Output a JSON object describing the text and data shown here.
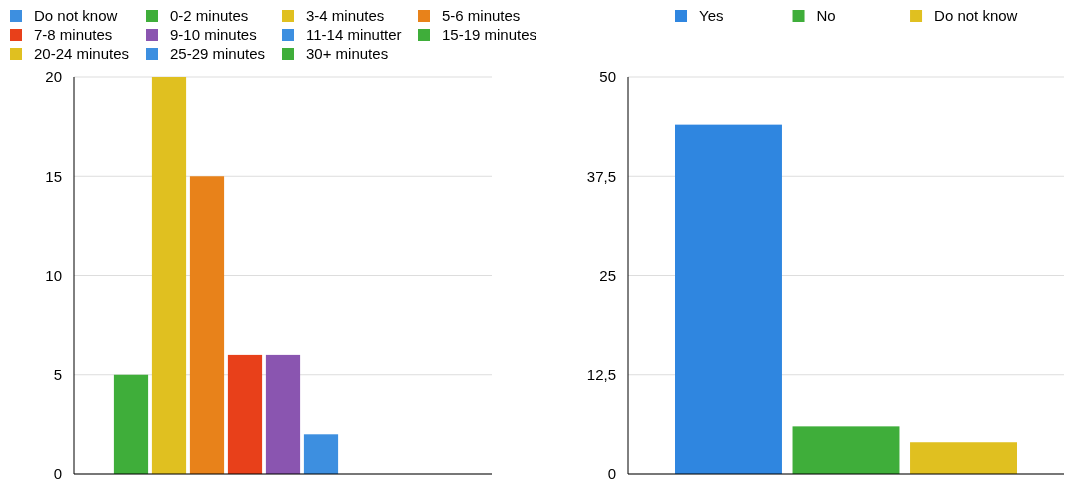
{
  "chart_data": [
    {
      "type": "bar",
      "categories": [
        null
      ],
      "series": [
        {
          "name": "Do not know",
          "color": "#3d8fe0",
          "values": [
            0
          ]
        },
        {
          "name": "0-2 minutes",
          "color": "#3fae3a",
          "values": [
            5
          ]
        },
        {
          "name": "3-4 minutes",
          "color": "#e0c020",
          "values": [
            20
          ]
        },
        {
          "name": "5-6 minutes",
          "color": "#e8821a",
          "values": [
            15
          ]
        },
        {
          "name": "7-8 minutes",
          "color": "#e8401a",
          "values": [
            6
          ]
        },
        {
          "name": "9-10 minutes",
          "color": "#8a55b0",
          "values": [
            6
          ]
        },
        {
          "name": "11-14 minutter",
          "color": "#3d8fe0",
          "values": [
            2
          ]
        },
        {
          "name": "15-19 minutes",
          "color": "#3fae3a",
          "values": [
            0
          ]
        },
        {
          "name": "20-24 minutes",
          "color": "#e0c020",
          "values": [
            0
          ]
        },
        {
          "name": "25-29 minutes",
          "color": "#3d8fe0",
          "values": [
            0
          ]
        },
        {
          "name": "30+ minutes",
          "color": "#3fae3a",
          "values": [
            0
          ]
        }
      ],
      "ylim": [
        0,
        20
      ],
      "yticks": [
        0,
        5,
        10,
        15,
        20
      ],
      "grid": "y",
      "legend": "top",
      "tick_labels": "y"
    },
    {
      "type": "bar",
      "categories": [
        null
      ],
      "series": [
        {
          "name": "Yes",
          "color": "#2f86e0",
          "values": [
            44
          ]
        },
        {
          "name": "No",
          "color": "#3fae3a",
          "values": [
            6
          ]
        },
        {
          "name": "Do not know",
          "color": "#e0c020",
          "values": [
            4
          ]
        }
      ],
      "ylim": [
        0,
        50
      ],
      "yticks": [
        0,
        {
          "value": 12.5,
          "label": "12,5"
        },
        25,
        {
          "value": 37.5,
          "label": "37,5"
        },
        50
      ],
      "grid": "y",
      "legend": "top",
      "tick_labels": "y"
    }
  ]
}
